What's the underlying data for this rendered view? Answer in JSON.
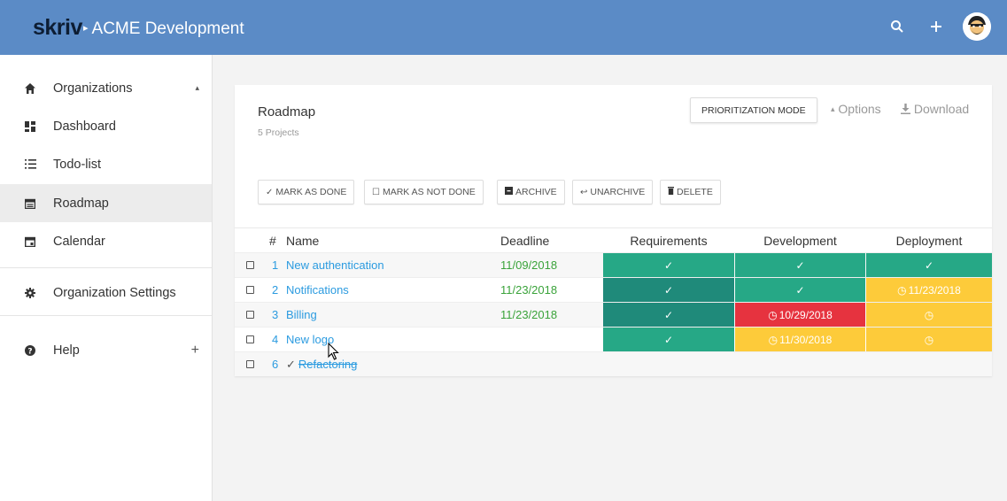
{
  "header": {
    "brand": "skriv",
    "breadcrumb_sep": "▸",
    "breadcrumb": "ACME Development"
  },
  "sidebar": {
    "items": [
      {
        "label": "Organizations",
        "icon": "home-icon",
        "extra": "▴"
      },
      {
        "label": "Dashboard",
        "icon": "dashboard-icon"
      },
      {
        "label": "Todo-list",
        "icon": "list-icon"
      },
      {
        "label": "Roadmap",
        "icon": "roadmap-icon"
      },
      {
        "label": "Calendar",
        "icon": "calendar-icon"
      },
      {
        "label": "Organization Settings",
        "icon": "gear-icon"
      },
      {
        "label": "Help",
        "icon": "help-icon",
        "extra": "+"
      }
    ]
  },
  "card": {
    "title": "Roadmap",
    "subtitle": "5 Projects",
    "prioritization": "PRIORITIZATION MODE",
    "options": "Options",
    "download": "Download"
  },
  "actions": {
    "mark_done": "MARK AS DONE",
    "mark_not_done": "MARK AS NOT DONE",
    "archive": "ARCHIVE",
    "unarchive": "UNARCHIVE",
    "delete": "DELETE"
  },
  "table": {
    "headers": {
      "num": "#",
      "name": "Name",
      "deadline": "Deadline",
      "requirements": "Requirements",
      "development": "Development",
      "deployment": "Deployment"
    },
    "rows": [
      {
        "num": "1",
        "name": "New authentication",
        "deadline": "11/09/2018",
        "req": "✓",
        "dev": "✓",
        "dep": "✓"
      },
      {
        "num": "2",
        "name": "Notifications",
        "deadline": "11/23/2018",
        "req": "✓",
        "dev": "✓",
        "dep": "11/23/2018"
      },
      {
        "num": "3",
        "name": "Billing",
        "deadline": "11/23/2018",
        "req": "✓",
        "dev": "10/29/2018",
        "dep": ""
      },
      {
        "num": "4",
        "name": "New logo",
        "deadline": "",
        "req": "✓",
        "dev": "11/30/2018",
        "dep": ""
      },
      {
        "num": "6",
        "name": "Refactoring",
        "deadline": "",
        "done_mark": "✓",
        "req": "",
        "dev": "",
        "dep": ""
      }
    ]
  },
  "colors": {
    "header_bg": "#5b8bc6",
    "green": "#26a886",
    "dark_teal": "#1f8a7a",
    "red": "#e6333f",
    "yellow": "#fdcb3a",
    "link": "#2b9be0",
    "deadline": "#3aa33a"
  }
}
